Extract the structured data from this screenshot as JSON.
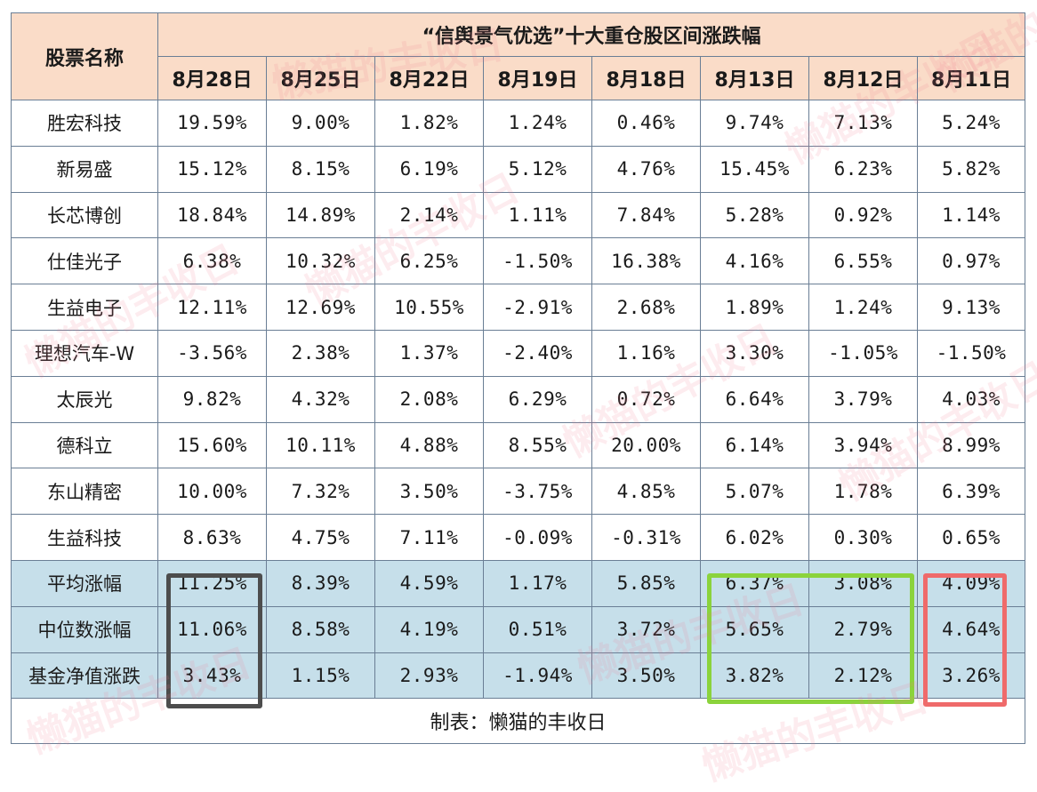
{
  "table": {
    "title": "“信舆景气优选”十大重仓股区间涨跌幅",
    "name_header": "股票名称",
    "dates": [
      "8月28日",
      "8月25日",
      "8月22日",
      "8月19日",
      "8月18日",
      "8月13日",
      "8月12日",
      "8月11日"
    ],
    "rows": [
      {
        "name": "胜宏科技",
        "values": [
          "19.59%",
          "9.00%",
          "1.82%",
          "1.24%",
          "0.46%",
          "9.74%",
          "7.13%",
          "5.24%"
        ]
      },
      {
        "name": "新易盛",
        "values": [
          "15.12%",
          "8.15%",
          "6.19%",
          "5.12%",
          "4.76%",
          "15.45%",
          "6.23%",
          "5.82%"
        ]
      },
      {
        "name": "长芯博创",
        "values": [
          "18.84%",
          "14.89%",
          "2.14%",
          "1.11%",
          "7.84%",
          "5.28%",
          "0.92%",
          "1.14%"
        ]
      },
      {
        "name": "仕佳光子",
        "values": [
          "6.38%",
          "10.32%",
          "6.25%",
          "-1.50%",
          "16.38%",
          "4.16%",
          "6.55%",
          "0.97%"
        ]
      },
      {
        "name": "生益电子",
        "values": [
          "12.11%",
          "12.69%",
          "10.55%",
          "-2.91%",
          "2.68%",
          "1.89%",
          "1.24%",
          "9.13%"
        ]
      },
      {
        "name": "理想汽车-W",
        "values": [
          "-3.56%",
          "2.38%",
          "1.37%",
          "-2.40%",
          "1.16%",
          "3.30%",
          "-1.05%",
          "-1.50%"
        ]
      },
      {
        "name": "太辰光",
        "values": [
          "9.82%",
          "4.32%",
          "2.08%",
          "6.29%",
          "0.72%",
          "6.64%",
          "3.79%",
          "4.03%"
        ]
      },
      {
        "name": "德科立",
        "values": [
          "15.60%",
          "10.11%",
          "4.88%",
          "8.55%",
          "20.00%",
          "6.14%",
          "3.94%",
          "8.99%"
        ]
      },
      {
        "name": "东山精密",
        "values": [
          "10.00%",
          "7.32%",
          "3.50%",
          "-3.75%",
          "4.85%",
          "5.07%",
          "1.78%",
          "6.39%"
        ]
      },
      {
        "name": "生益科技",
        "values": [
          "8.63%",
          "4.75%",
          "7.11%",
          "-0.09%",
          "-0.31%",
          "6.02%",
          "0.30%",
          "0.65%"
        ]
      }
    ],
    "stats": [
      {
        "name": "平均涨幅",
        "values": [
          "11.25%",
          "8.39%",
          "4.59%",
          "1.17%",
          "5.85%",
          "6.37%",
          "3.08%",
          "4.09%"
        ]
      },
      {
        "name": "中位数涨幅",
        "values": [
          "11.06%",
          "8.58%",
          "4.19%",
          "0.51%",
          "3.72%",
          "5.65%",
          "2.79%",
          "4.64%"
        ]
      },
      {
        "name": "基金净值涨跌",
        "values": [
          "3.43%",
          "1.15%",
          "2.93%",
          "-1.94%",
          "3.50%",
          "3.82%",
          "2.12%",
          "3.26%"
        ]
      }
    ],
    "footer": "制表：懒猫的丰收日"
  },
  "watermark": "懒猫的丰收日",
  "colors": {
    "header_bg": "#fadcc8",
    "stat_bg": "#c6dfea",
    "border": "#6a7e95",
    "box_gray": "#4d4d4d",
    "box_green": "#8bd33c",
    "box_red": "#ef6a6a"
  }
}
